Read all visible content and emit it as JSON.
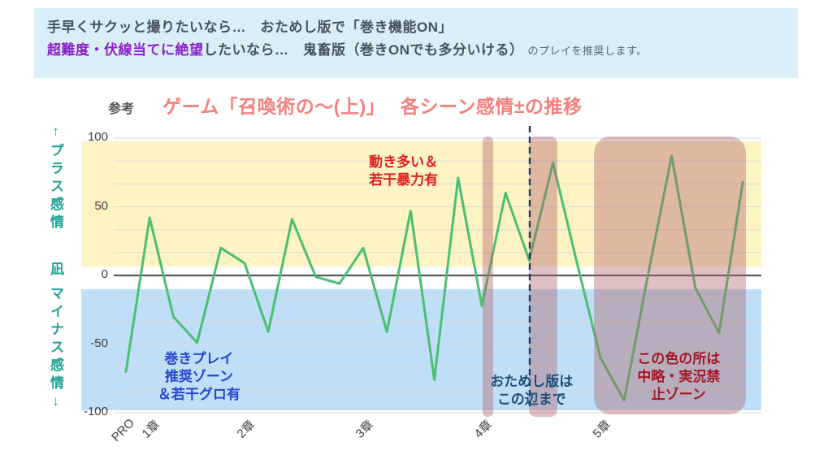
{
  "header": {
    "line1": "手早くサクッと撮りたいなら…　おためし版で「巻き機能ON」",
    "line2_highlight": "超難度・伏線当てに絶望",
    "line2_rest": "したいなら…　鬼畜版（巻きONでも多分いける）",
    "line2_suffix": "　のプレイを推奨します。"
  },
  "title": {
    "prefix": "参考",
    "text": "ゲーム「召喚術の～(上)」　 各シーン感情±の推移"
  },
  "colors": {
    "banner_bg": "#daeef8",
    "banner_text": "#47525c",
    "highlight_purple": "#8b1fc8",
    "suffix_gray": "#5b6770",
    "title_pink": "#f5807e",
    "title_prefix_gray": "#555555",
    "axis_teal": "#1fa294",
    "plus_zone_yellow": "#fdf3c3",
    "minus_zone_blue": "#bedff7",
    "line_green": "#4bbf72",
    "zero_line": "#595959",
    "gridline": "#d9d9d9",
    "overlay_band": "rgba(176,98,106,0.40)",
    "dashed_navy": "#1f3864",
    "note_red": "#e02020",
    "note_blue": "#2547d0",
    "note_navy": "#1f4e79",
    "note_darkred": "#a31824",
    "tick_text": "#3f3f3f"
  },
  "chart_data": {
    "type": "line",
    "title": "ゲーム「召喚術の～(上)」　各シーン感情±の推移",
    "xlabel": "",
    "ylabel": "感情±",
    "ylim": [
      -100,
      100
    ],
    "grid": true,
    "n_points": 27,
    "values": [
      -70,
      42,
      -30,
      -49,
      20,
      9,
      -41,
      41,
      -1,
      -6,
      20,
      -41,
      47,
      -76,
      71,
      -22,
      60,
      11,
      82,
      10,
      -60,
      -91,
      0,
      87,
      -9,
      -42,
      68
    ],
    "x_categories": [
      {
        "label": "PRO",
        "index": 0
      },
      {
        "label": "1章",
        "index": 1
      },
      {
        "label": "2章",
        "index": 5
      },
      {
        "label": "3章",
        "index": 10
      },
      {
        "label": "4章",
        "index": 15
      },
      {
        "label": "5章",
        "index": 20
      }
    ],
    "yticks": [
      {
        "label": "100",
        "value": 100
      },
      {
        "label": "50",
        "value": 50
      },
      {
        "label": "0",
        "value": 0
      },
      {
        "label": "-50",
        "value": -50
      },
      {
        "label": "-100",
        "value": -100
      }
    ],
    "left_axis": {
      "top": "↑プラス感情",
      "mid": "凪",
      "bottom": "マイナス感情↓"
    },
    "zones": [
      {
        "name": "plus-emotion-zone",
        "from": 6.5,
        "to": 97.6
      },
      {
        "name": "minus-emotion-zone",
        "from": -98.2,
        "to": -10
      }
    ],
    "overlay_bands": [
      {
        "name": "cut-band-1",
        "from_index": 15.03,
        "to_index": 15.48,
        "radius": 6
      },
      {
        "name": "cut-band-2",
        "from_index": 16.99,
        "to_index": 18.18,
        "radius": 8
      },
      {
        "name": "cut-band-3",
        "from_index": 19.73,
        "to_index": 26.13,
        "radius": 20
      }
    ],
    "dashed_line_index": 17.02,
    "annotations": [
      {
        "id": "movement-note",
        "lines": [
          "動き多い＆",
          "若干暴力有"
        ],
        "color_key": "note_red",
        "x_index": 11.7,
        "value": 76
      },
      {
        "id": "rewind-note",
        "lines": [
          "巻きプレイ",
          "推奨ゾーン",
          "＆若干グロ有"
        ],
        "color_key": "note_blue",
        "x_index": 3.08,
        "value": -74
      },
      {
        "id": "trial-note",
        "lines": [
          "おためし版は",
          "この辺まで"
        ],
        "color_key": "note_navy",
        "x_index": 17.1,
        "value": -84
      },
      {
        "id": "ban-note",
        "lines": [
          "この色の所は",
          "中略・実況禁",
          "止ゾーン"
        ],
        "color_key": "note_darkred",
        "x_index": 23.3,
        "value": -74
      }
    ]
  }
}
